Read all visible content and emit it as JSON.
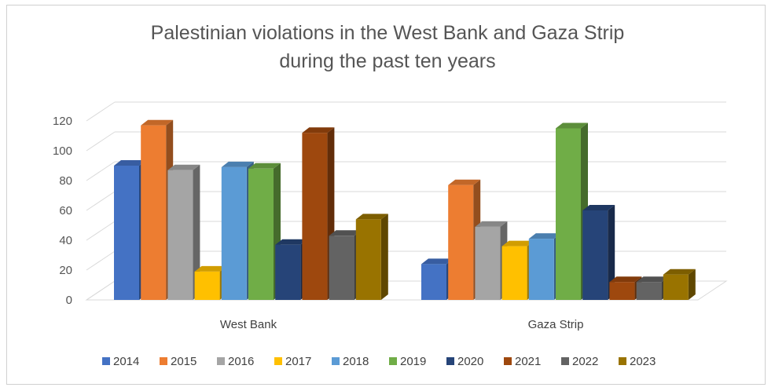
{
  "chart_data": {
    "type": "bar",
    "title": "Palestinian violations in the West Bank and Gaza Strip\nduring the past ten years",
    "categories": [
      "West Bank",
      "Gaza Strip"
    ],
    "ylim": [
      0,
      120
    ],
    "yticks": [
      0,
      20,
      40,
      60,
      80,
      100,
      120
    ],
    "grid": true,
    "legend_position": "bottom",
    "series": [
      {
        "name": "2014",
        "color": "#4472C4",
        "values": [
          90,
          24
        ]
      },
      {
        "name": "2015",
        "color": "#ED7D31",
        "values": [
          117,
          77
        ]
      },
      {
        "name": "2016",
        "color": "#A5A5A5",
        "values": [
          87,
          49
        ]
      },
      {
        "name": "2017",
        "color": "#FFC000",
        "values": [
          19,
          36
        ]
      },
      {
        "name": "2018",
        "color": "#5B9BD5",
        "values": [
          89,
          41
        ]
      },
      {
        "name": "2019",
        "color": "#70AD47",
        "values": [
          88,
          115
        ]
      },
      {
        "name": "2020",
        "color": "#264478",
        "values": [
          37,
          60
        ]
      },
      {
        "name": "2021",
        "color": "#9E480E",
        "values": [
          112,
          12
        ]
      },
      {
        "name": "2022",
        "color": "#636363",
        "values": [
          43,
          12
        ]
      },
      {
        "name": "2023",
        "color": "#997300",
        "values": [
          54,
          17
        ]
      }
    ]
  }
}
